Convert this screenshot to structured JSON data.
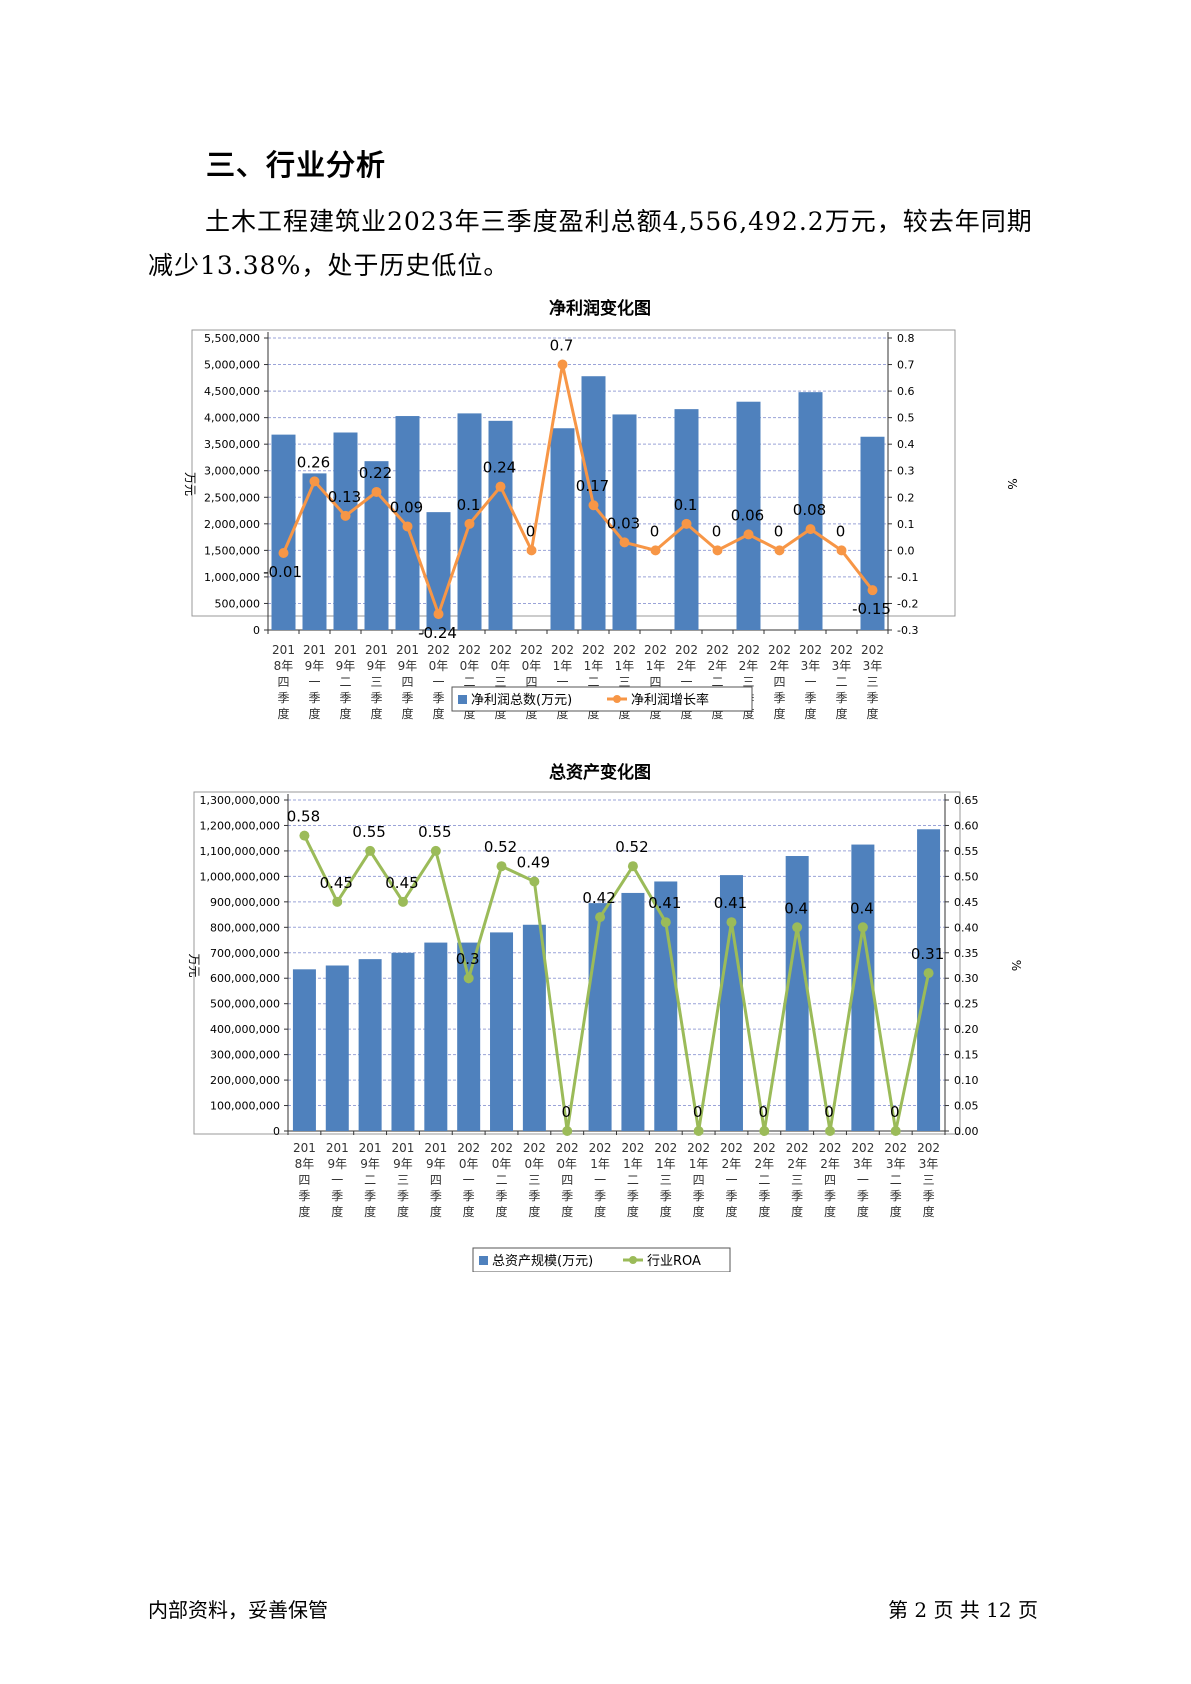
{
  "section": {
    "heading": "三、行业分析",
    "paragraph": "土木工程建筑业2023年三季度盈利总额4,556,492.2万元，较去年同期减少13.38%，处于历史低位。"
  },
  "colors": {
    "bar": "#4f81bd",
    "line1": "#f79646",
    "line2": "#9bbb59",
    "grid": "#9aa3d8"
  },
  "chart_data": [
    {
      "type": "bar+line",
      "title": "净利润变化图",
      "ylabel_left": "万元",
      "ylabel_right": "%",
      "categories": [
        [
          "201",
          "8年",
          "四",
          "季",
          "度"
        ],
        [
          "201",
          "9年",
          "一",
          "季",
          "度"
        ],
        [
          "201",
          "9年",
          "二",
          "季",
          "度"
        ],
        [
          "201",
          "9年",
          "三",
          "季",
          "度"
        ],
        [
          "201",
          "9年",
          "四",
          "季",
          "度"
        ],
        [
          "202",
          "0年",
          "一",
          "季",
          "度"
        ],
        [
          "202",
          "0年",
          "二",
          "季",
          "度"
        ],
        [
          "202",
          "0年",
          "三",
          "季",
          "度"
        ],
        [
          "202",
          "0年",
          "四",
          "季",
          "度"
        ],
        [
          "202",
          "1年",
          "一",
          "季",
          "度"
        ],
        [
          "202",
          "1年",
          "二",
          "季",
          "度"
        ],
        [
          "202",
          "1年",
          "三",
          "季",
          "度"
        ],
        [
          "202",
          "1年",
          "四",
          "季",
          "度"
        ],
        [
          "202",
          "2年",
          "一",
          "季",
          "度"
        ],
        [
          "202",
          "2年",
          "二",
          "季",
          "度"
        ],
        [
          "202",
          "2年",
          "三",
          "季",
          "度"
        ],
        [
          "202",
          "2年",
          "四",
          "季",
          "度"
        ],
        [
          "202",
          "3年",
          "一",
          "季",
          "度"
        ],
        [
          "202",
          "3年",
          "二",
          "季",
          "度"
        ],
        [
          "202",
          "3年",
          "三",
          "季",
          "度"
        ]
      ],
      "left_axis": {
        "min": 0,
        "max": 5500000,
        "ticks": [
          0,
          500000,
          1000000,
          1500000,
          2000000,
          2500000,
          3000000,
          3500000,
          4000000,
          4500000,
          5000000,
          5500000
        ],
        "tick_labels": [
          "0",
          "500,000",
          "1,000,000",
          "1,500,000",
          "2,000,000",
          "2,500,000",
          "3,000,000",
          "3,500,000",
          "4,000,000",
          "4,500,000",
          "5,000,000",
          "5,500,000"
        ]
      },
      "right_axis": {
        "min": -0.3,
        "max": 0.8,
        "ticks": [
          -0.3,
          -0.2,
          -0.1,
          0,
          0.1,
          0.2,
          0.3,
          0.4,
          0.5,
          0.6,
          0.7,
          0.8
        ],
        "tick_labels": [
          "-0.3",
          "-0.2",
          "-0.1",
          "0.0",
          "0.1",
          "0.2",
          "0.3",
          "0.4",
          "0.5",
          "0.6",
          "0.7",
          "0.8"
        ]
      },
      "bar_series": {
        "name": "净利润总数(万元)",
        "values": [
          3680000,
          2950000,
          3720000,
          3180000,
          4030000,
          2220000,
          4080000,
          3940000,
          null,
          3800000,
          4780000,
          4060000,
          null,
          4160000,
          null,
          4300000,
          null,
          4480000,
          null,
          3640000
        ]
      },
      "line_series": {
        "name": "净利润增长率",
        "values": [
          -0.01,
          0.26,
          0.13,
          0.22,
          0.09,
          -0.24,
          0.1,
          0.24,
          0,
          0.7,
          0.17,
          0.03,
          0,
          0.1,
          0,
          0.06,
          0,
          0.08,
          0,
          -0.15
        ],
        "labels": [
          "-0.01",
          "0.26",
          "0.13",
          "0.22",
          "0.09",
          "-0.24",
          "0.1",
          "0.24",
          "0",
          "0.7",
          "0.17",
          "0.03",
          "0",
          "0.1",
          "0",
          "0.06",
          "0",
          "0.08",
          "0",
          "-0.15"
        ]
      },
      "legend": [
        "净利润总数(万元)",
        "净利润增长率"
      ]
    },
    {
      "type": "bar+line",
      "title": "总资产变化图",
      "ylabel_left": "万元",
      "ylabel_right": "%",
      "categories": [
        [
          "201",
          "8年",
          "四",
          "季",
          "度"
        ],
        [
          "201",
          "9年",
          "一",
          "季",
          "度"
        ],
        [
          "201",
          "9年",
          "二",
          "季",
          "度"
        ],
        [
          "201",
          "9年",
          "三",
          "季",
          "度"
        ],
        [
          "201",
          "9年",
          "四",
          "季",
          "度"
        ],
        [
          "202",
          "0年",
          "一",
          "季",
          "度"
        ],
        [
          "202",
          "0年",
          "二",
          "季",
          "度"
        ],
        [
          "202",
          "0年",
          "三",
          "季",
          "度"
        ],
        [
          "202",
          "0年",
          "四",
          "季",
          "度"
        ],
        [
          "202",
          "1年",
          "一",
          "季",
          "度"
        ],
        [
          "202",
          "1年",
          "二",
          "季",
          "度"
        ],
        [
          "202",
          "1年",
          "三",
          "季",
          "度"
        ],
        [
          "202",
          "1年",
          "四",
          "季",
          "度"
        ],
        [
          "202",
          "2年",
          "一",
          "季",
          "度"
        ],
        [
          "202",
          "2年",
          "二",
          "季",
          "度"
        ],
        [
          "202",
          "2年",
          "三",
          "季",
          "度"
        ],
        [
          "202",
          "2年",
          "四",
          "季",
          "度"
        ],
        [
          "202",
          "3年",
          "一",
          "季",
          "度"
        ],
        [
          "202",
          "3年",
          "二",
          "季",
          "度"
        ],
        [
          "202",
          "3年",
          "三",
          "季",
          "度"
        ]
      ],
      "left_axis": {
        "min": 0,
        "max": 1300000000,
        "ticks": [
          0,
          100000000,
          200000000,
          300000000,
          400000000,
          500000000,
          600000000,
          700000000,
          800000000,
          900000000,
          1000000000,
          1100000000,
          1200000000,
          1300000000
        ],
        "tick_labels": [
          "0",
          "100,000,000",
          "200,000,000",
          "300,000,000",
          "400,000,000",
          "500,000,000",
          "600,000,000",
          "700,000,000",
          "800,000,000",
          "900,000,000",
          "1,000,000,000",
          "1,100,000,000",
          "1,200,000,000",
          "1,300,000,000"
        ]
      },
      "right_axis": {
        "min": 0,
        "max": 0.65,
        "ticks": [
          0,
          0.05,
          0.1,
          0.15,
          0.2,
          0.25,
          0.3,
          0.35,
          0.4,
          0.45,
          0.5,
          0.55,
          0.6,
          0.65
        ],
        "tick_labels": [
          "0.00",
          "0.05",
          "0.10",
          "0.15",
          "0.20",
          "0.25",
          "0.30",
          "0.35",
          "0.40",
          "0.45",
          "0.50",
          "0.55",
          "0.60",
          "0.65"
        ]
      },
      "bar_series": {
        "name": "总资产规模(万元)",
        "values": [
          635000000,
          650000000,
          675000000,
          700000000,
          740000000,
          740000000,
          780000000,
          810000000,
          null,
          895000000,
          935000000,
          980000000,
          null,
          1005000000,
          null,
          1080000000,
          null,
          1125000000,
          null,
          1185000000
        ]
      },
      "line_series": {
        "name": "行业ROA",
        "values": [
          0.58,
          0.45,
          0.55,
          0.45,
          0.55,
          0.3,
          0.52,
          0.49,
          0,
          0.42,
          0.52,
          0.41,
          0,
          0.41,
          0,
          0.4,
          0,
          0.4,
          0,
          0.31
        ],
        "labels": [
          "0.58",
          "0.45",
          "0.55",
          "0.45",
          "0.55",
          "0.3",
          "0.52",
          "0.49",
          "0",
          "0.42",
          "0.52",
          "0.41",
          "0",
          "0.41",
          "0",
          "0.4",
          "0",
          "0.4",
          "0",
          "0.31"
        ]
      },
      "legend": [
        "总资产规模(万元)",
        "行业ROA"
      ]
    }
  ],
  "footer": {
    "left": "内部资料，妥善保管",
    "right": "第 2 页   共 12 页"
  }
}
